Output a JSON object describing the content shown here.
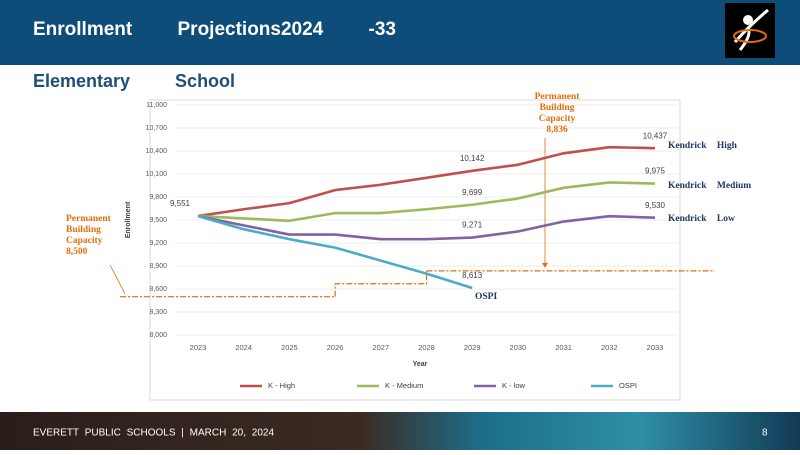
{
  "header": {
    "title": "Enrollment Projections2024 -33",
    "subtitle": "Elementary School"
  },
  "footer": {
    "text": "EVERETT PUBLIC SCHOOLS | MARCH 20, 2024",
    "page": "8"
  },
  "chart_data": {
    "type": "line",
    "x_label": "Year",
    "y_label": "Enrollment",
    "categories": [
      "2023",
      "2024",
      "2025",
      "2026",
      "2027",
      "2028",
      "2029",
      "2030",
      "2031",
      "2032",
      "2033"
    ],
    "ylim": [
      8000,
      11000
    ],
    "yticks": [
      {
        "value": 8000,
        "label": "8,000"
      },
      {
        "value": 8300,
        "label": "8,300"
      },
      {
        "value": 8600,
        "label": "8,600"
      },
      {
        "value": 8900,
        "label": "8,900"
      },
      {
        "value": 9200,
        "label": "9,200"
      },
      {
        "value": 9500,
        "label": "9,500"
      },
      {
        "value": 9800,
        "label": "9,800"
      },
      {
        "value": 10100,
        "label": "10,100"
      },
      {
        "value": 10400,
        "label": "10,400"
      },
      {
        "value": 10700,
        "label": "10,700"
      },
      {
        "value": 11000,
        "label": "11,000"
      }
    ],
    "grid": true,
    "legend": "bottom",
    "series": [
      {
        "name": "K - High",
        "line_label": "Kendrick High",
        "color": "#c0504d",
        "values": [
          9551,
          9640,
          9720,
          9890,
          9960,
          10050,
          10142,
          10220,
          10370,
          10450,
          10437
        ],
        "value_labels": [
          "9,551",
          null,
          null,
          null,
          null,
          null,
          "10,142",
          null,
          null,
          null,
          "10,437"
        ]
      },
      {
        "name": "K - Medium",
        "line_label": "Kendrick Medium",
        "color": "#9bbb59",
        "values": [
          9551,
          9520,
          9490,
          9590,
          9590,
          9640,
          9699,
          9780,
          9920,
          9990,
          9975
        ],
        "value_labels": [
          null,
          null,
          null,
          null,
          null,
          null,
          "9,699",
          null,
          null,
          null,
          "9,975"
        ]
      },
      {
        "name": "K - low",
        "line_label": "Kendrick Low",
        "color": "#8064a2",
        "values": [
          9551,
          9430,
          9310,
          9310,
          9250,
          9250,
          9271,
          9350,
          9480,
          9550,
          9530
        ],
        "value_labels": [
          null,
          null,
          null,
          null,
          null,
          null,
          "9,271",
          null,
          null,
          null,
          "9,530"
        ]
      },
      {
        "name": "OSPI",
        "line_label": "OSPI",
        "color": "#4bacc6",
        "values": [
          9551,
          9380,
          9250,
          9140,
          8970,
          8800,
          8613,
          null,
          null,
          null,
          null
        ],
        "value_labels": [
          null,
          null,
          null,
          null,
          null,
          null,
          "8,613",
          null,
          null,
          null,
          null
        ]
      }
    ],
    "annotations": [
      {
        "lines": [
          "Permanent",
          "Building",
          "Capacity",
          "8,836"
        ],
        "value": 8836
      },
      {
        "lines": [
          "Permanent",
          "Building",
          "Capacity",
          "8,500"
        ],
        "value": 8500
      }
    ]
  }
}
